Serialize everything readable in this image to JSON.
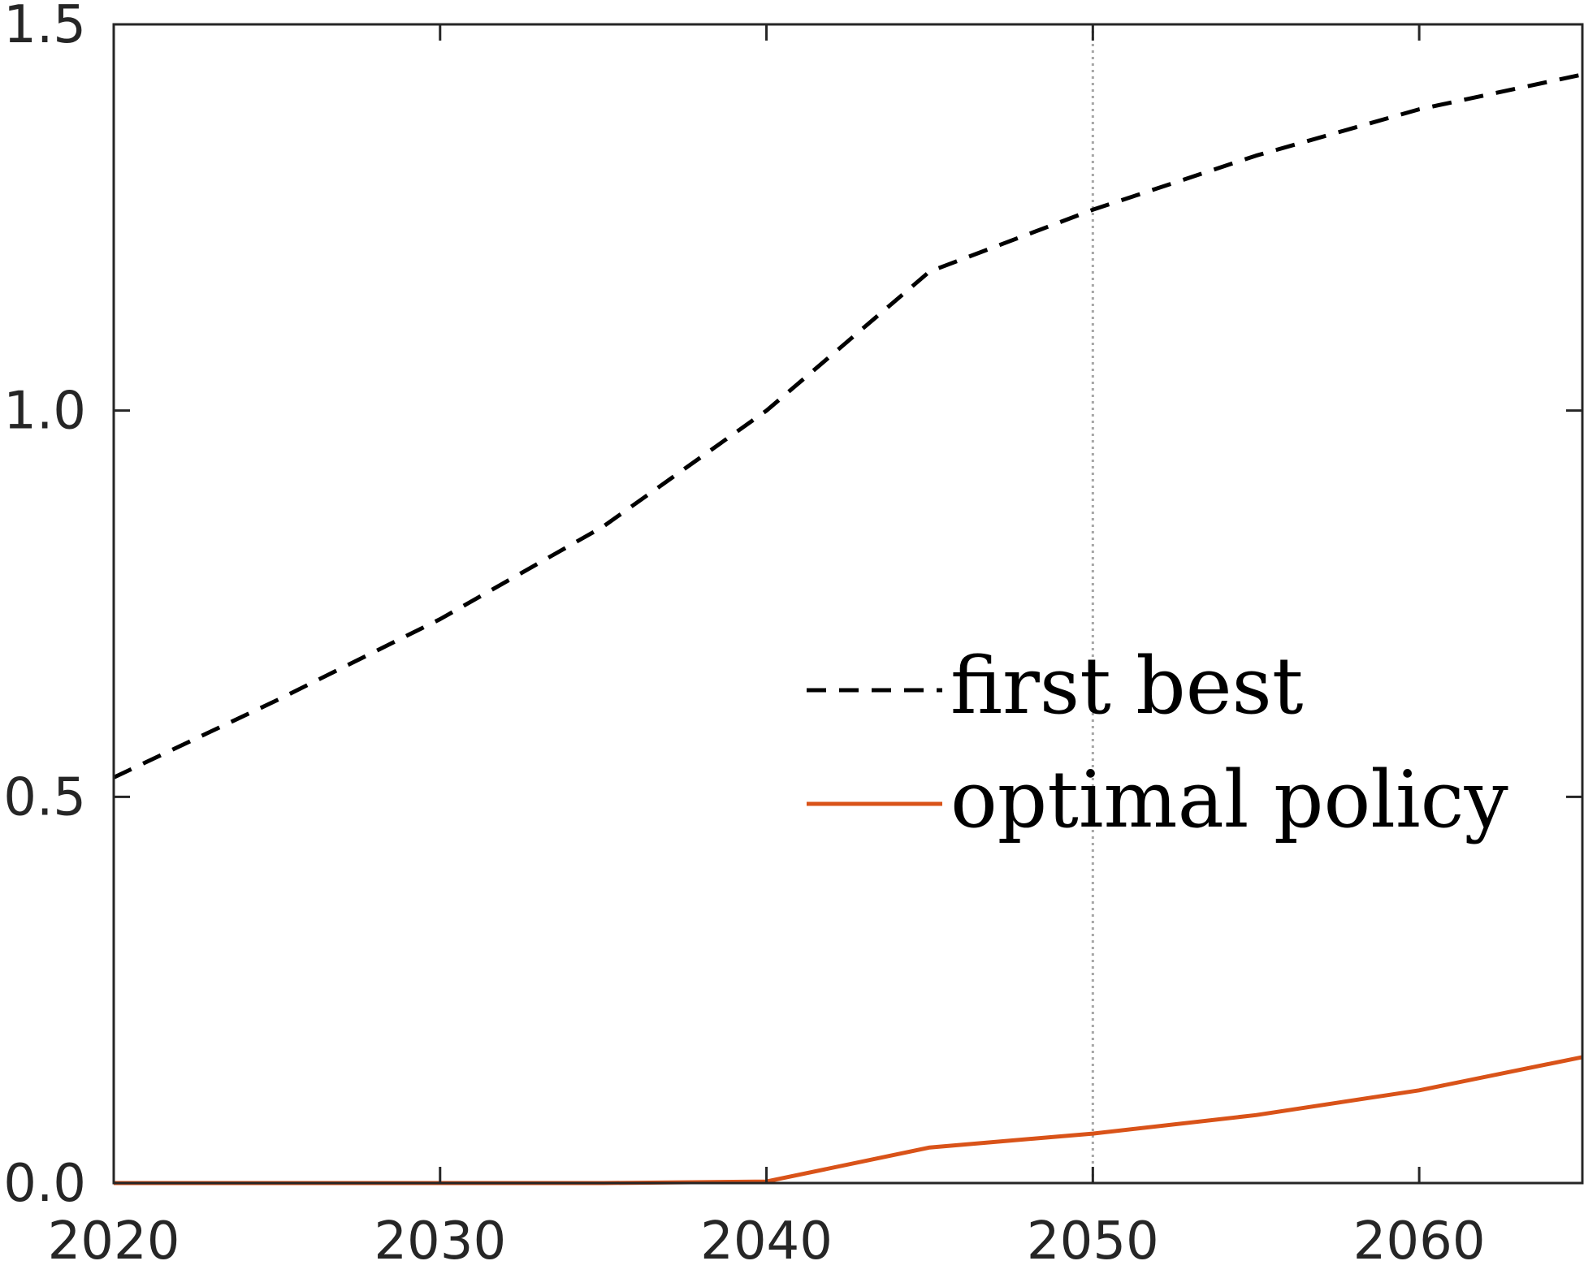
{
  "chart_data": {
    "type": "line",
    "title": "",
    "xlabel": "",
    "ylabel": "",
    "xlim": [
      2020,
      2065
    ],
    "ylim": [
      0,
      1.5
    ],
    "xticks": [
      2020,
      2030,
      2040,
      2050,
      2060
    ],
    "xtick_labels": [
      "2020",
      "2030",
      "2040",
      "2050",
      "2060"
    ],
    "yticks": [
      0,
      0.5,
      1.0,
      1.5
    ],
    "ytick_labels": [
      "0.0",
      "0.5",
      "1.0",
      "1.5"
    ],
    "grid": false,
    "legend_position": "center-right",
    "reference_line": {
      "orientation": "vertical",
      "x": 2050,
      "color": "#a6a6a6",
      "style": "dotted"
    },
    "x": [
      2020,
      2025,
      2030,
      2035,
      2040,
      2045,
      2050,
      2055,
      2060,
      2065
    ],
    "series": [
      {
        "name": "first best",
        "color": "#000000",
        "style": "dashed",
        "values": [
          0.525,
          0.625,
          0.73,
          0.85,
          1.0,
          1.18,
          1.26,
          1.33,
          1.39,
          1.435
        ]
      },
      {
        "name": "optimal policy",
        "color": "#d95319",
        "style": "solid",
        "values": [
          0.0,
          0.0,
          0.0,
          0.0,
          0.002,
          0.046,
          0.064,
          0.088,
          0.12,
          0.163
        ]
      }
    ]
  }
}
